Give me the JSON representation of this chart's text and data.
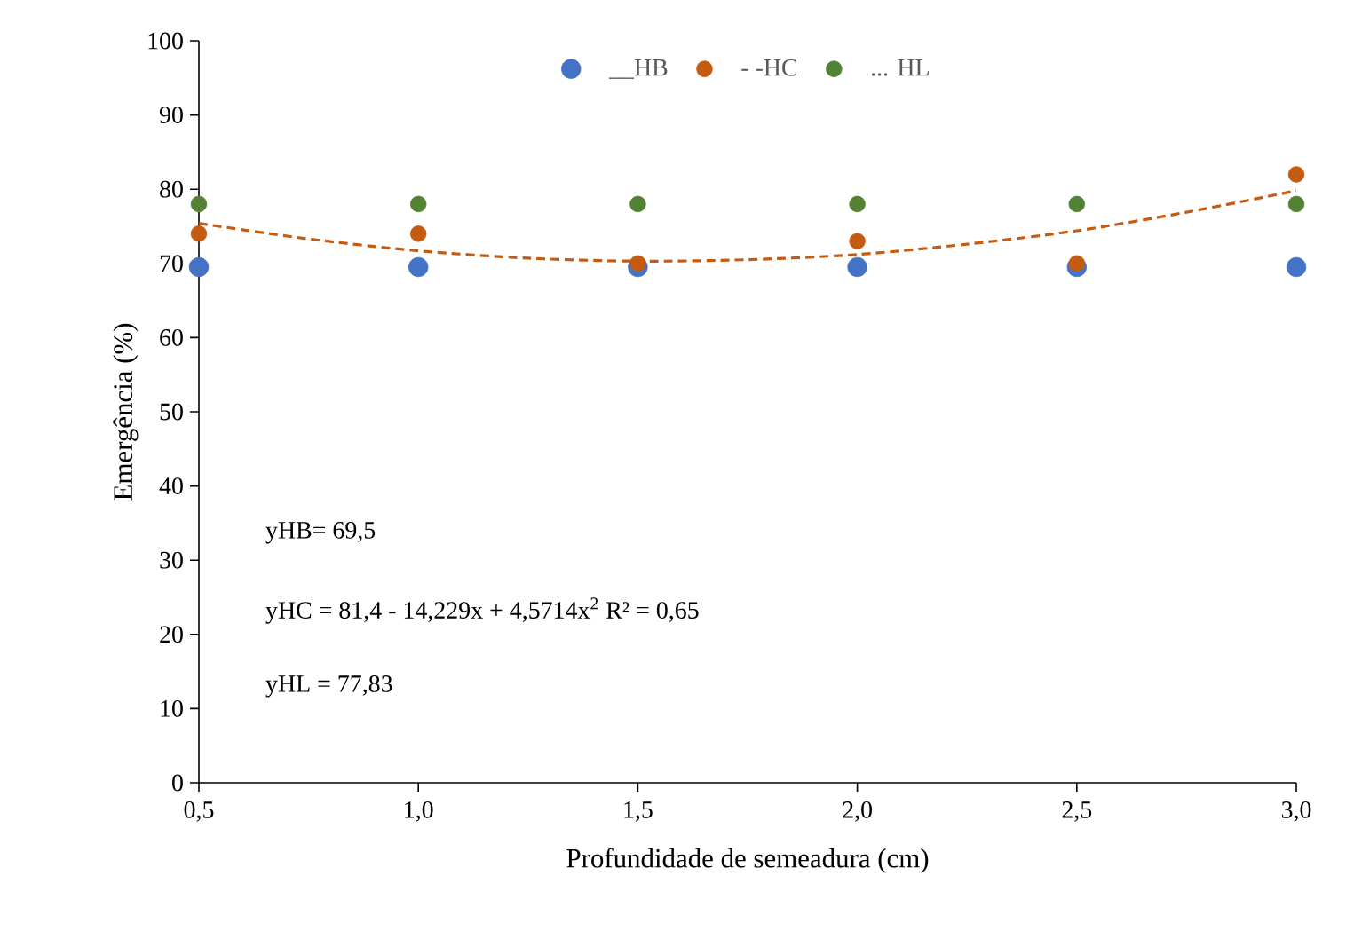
{
  "chart_data": {
    "type": "scatter",
    "xlabel": "Profundidade de semeadura (cm)",
    "ylabel": "Emergência (%)",
    "x": [
      0.5,
      1.0,
      1.5,
      2.0,
      2.5,
      3.0
    ],
    "xlim": [
      0.5,
      3.0
    ],
    "xticks": [
      {
        "value": 0.5,
        "label": "0,5"
      },
      {
        "value": 1.0,
        "label": "1,0"
      },
      {
        "value": 1.5,
        "label": "1,5"
      },
      {
        "value": 2.0,
        "label": "2,0"
      },
      {
        "value": 2.5,
        "label": "2,5"
      },
      {
        "value": 3.0,
        "label": "3,0"
      }
    ],
    "ylim": [
      0,
      100
    ],
    "yticks": [
      0,
      10,
      20,
      30,
      40,
      50,
      60,
      70,
      80,
      90,
      100
    ],
    "marker": "circle",
    "grid": false,
    "legend": "top",
    "series": [
      {
        "name": "__HB",
        "color": "#4472c4",
        "values": [
          69.5,
          69.5,
          69.5,
          69.5,
          69.5,
          69.5
        ]
      },
      {
        "name": "- -HC",
        "color": "#c55a11",
        "values": [
          74,
          74,
          70,
          73,
          70,
          82
        ]
      },
      {
        "name": "... HL",
        "color": "#548235",
        "values": [
          78,
          78,
          78,
          78,
          78,
          78
        ]
      },
      {
        "type": "line",
        "color": "#c55a11",
        "line_style": "dashed",
        "marker": "none",
        "x": [
          0.5,
          0.75,
          1.0,
          1.25,
          1.5,
          1.75,
          2.0,
          2.25,
          2.5,
          2.75,
          3.0
        ],
        "values": [
          75.4,
          73.3,
          71.7,
          70.7,
          70.3,
          70.5,
          71.2,
          72.6,
          74.4,
          76.9,
          79.8
        ]
      }
    ],
    "annotations": [
      "yHB= 69,5",
      "yHC = 81,4 - 14,229x + 4,5714x$^{2}$   R² = 0,65",
      "yHL = 77,83"
    ]
  }
}
